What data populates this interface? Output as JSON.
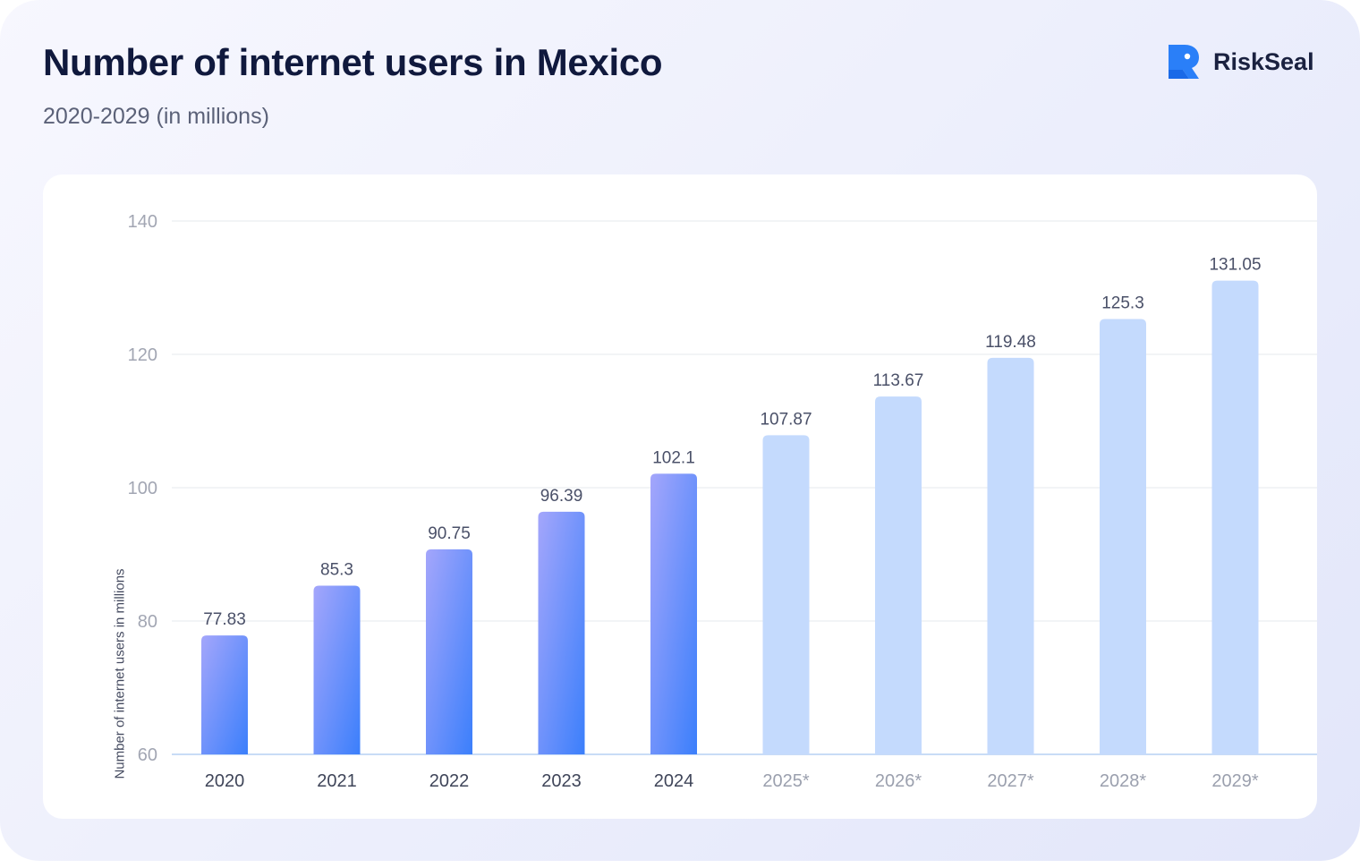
{
  "header": {
    "title": "Number of internet users in Mexico",
    "subtitle": "2020-2029 (in millions)",
    "brand": "RiskSeal"
  },
  "colors": {
    "actual_bar_top": "#a4a6fb",
    "actual_bar_bottom": "#3b7ffb",
    "forecast_bar": "#c4dafd",
    "grid": "#eef0f4",
    "baseline": "#c8dcf6",
    "brand": "#2a7ff8"
  },
  "chart_data": {
    "type": "bar",
    "title": "Number of internet users in Mexico",
    "subtitle": "2020-2029 (in millions)",
    "xlabel": "",
    "ylabel": "Number of internet users in millions",
    "ylim": [
      60,
      140
    ],
    "yticks": [
      60,
      80,
      100,
      120,
      140
    ],
    "grid": true,
    "categories": [
      "2020",
      "2021",
      "2022",
      "2023",
      "2024",
      "2025*",
      "2026*",
      "2027*",
      "2028*",
      "2029*"
    ],
    "values": [
      77.83,
      85.3,
      90.75,
      96.39,
      102.1,
      107.87,
      113.67,
      119.48,
      125.3,
      131.05
    ],
    "value_labels": [
      "77.83",
      "85.3",
      "90.75",
      "96.39",
      "102.1",
      "107.87",
      "113.67",
      "119.48",
      "125.3",
      "131.05"
    ],
    "forecast": [
      false,
      false,
      false,
      false,
      false,
      true,
      true,
      true,
      true,
      true
    ]
  }
}
